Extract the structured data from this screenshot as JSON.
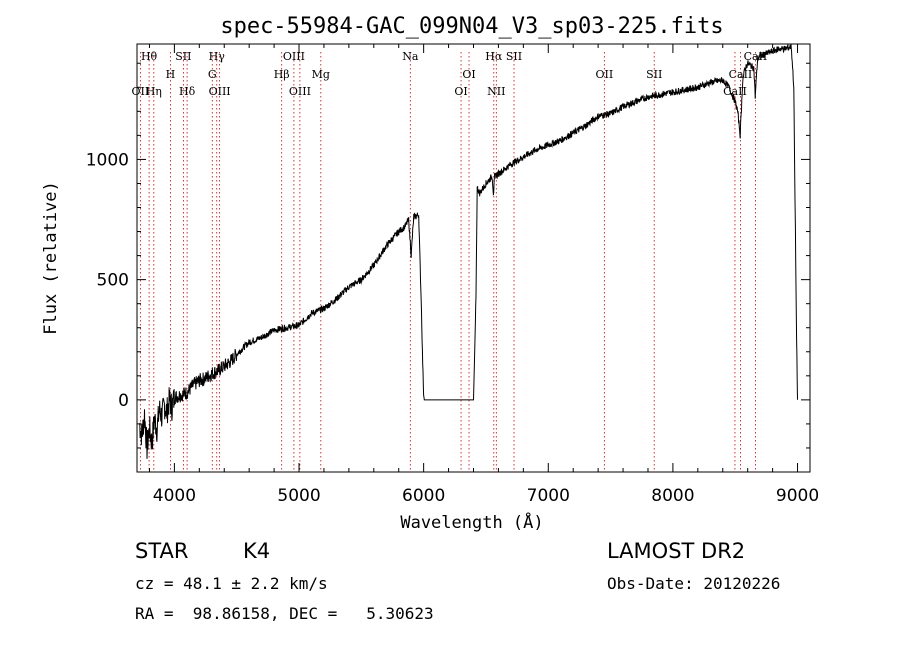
{
  "chart_data": {
    "type": "line",
    "title": "spec-55984-GAC_099N04_V3_sp03-225.fits",
    "xlabel": "Wavelength (Å)",
    "ylabel": "Flux (relative)",
    "xlim": [
      3700,
      9100
    ],
    "ylim": [
      -300,
      1480
    ],
    "xticks": [
      4000,
      5000,
      6000,
      7000,
      8000,
      9000
    ],
    "xtick_labels": [
      "4000",
      "5000",
      "6000",
      "7000",
      "8000",
      "9000"
    ],
    "yticks": [
      0,
      500,
      1000
    ],
    "ytick_labels": [
      "0",
      "500",
      "1000"
    ],
    "grid": false,
    "line_color": "#000000",
    "marker_color": "#cc0000",
    "spectral_lines": [
      {
        "label": "Hθ",
        "x": 3797,
        "row": 0
      },
      {
        "label": "OII",
        "x": 3727,
        "row": 2
      },
      {
        "label": "Hη",
        "x": 3835,
        "row": 2
      },
      {
        "label": "SII",
        "x": 4072,
        "row": 0
      },
      {
        "label": "H",
        "x": 3968,
        "row": 1
      },
      {
        "label": "Hδ",
        "x": 4102,
        "row": 2
      },
      {
        "label": "Hγ",
        "x": 4340,
        "row": 0
      },
      {
        "label": "G",
        "x": 4304,
        "row": 1
      },
      {
        "label": "OIII",
        "x": 4363,
        "row": 2
      },
      {
        "label": "OIII",
        "x": 4959,
        "row": 0
      },
      {
        "label": "Hβ",
        "x": 4861,
        "row": 1
      },
      {
        "label": "OIII",
        "x": 5007,
        "row": 2
      },
      {
        "label": "Mg",
        "x": 5175,
        "row": 1
      },
      {
        "label": "Na",
        "x": 5893,
        "row": 0
      },
      {
        "label": "OI",
        "x": 6364,
        "row": 1
      },
      {
        "label": "OI",
        "x": 6300,
        "row": 2
      },
      {
        "label": "Hα",
        "x": 6563,
        "row": 0
      },
      {
        "label": "SII",
        "x": 6725,
        "row": 0
      },
      {
        "label": "NII",
        "x": 6583,
        "row": 2
      },
      {
        "label": "OII",
        "x": 7450,
        "row": 1
      },
      {
        "label": "SII",
        "x": 7850,
        "row": 1
      },
      {
        "label": "CaII",
        "x": 8662,
        "row": 0
      },
      {
        "label": "CaII",
        "x": 8542,
        "row": 1
      },
      {
        "label": "CaII",
        "x": 8498,
        "row": 2
      }
    ],
    "series": [
      {
        "x": [
          3720,
          3740,
          3760,
          3780,
          3800,
          3820,
          3840,
          3860,
          3880,
          3900,
          3920,
          3940,
          3960,
          3980,
          4000,
          4050,
          4100,
          4150,
          4200,
          4250,
          4300,
          4350,
          4400,
          4450,
          4500,
          4600,
          4700,
          4800,
          4900,
          5000,
          5100,
          5200,
          5300,
          5400,
          5500,
          5600,
          5700,
          5800,
          5850,
          5880,
          5900,
          5920,
          5960,
          5980,
          5990,
          6000,
          6005,
          6010,
          6020,
          6100,
          6200,
          6300,
          6350,
          6380,
          6400,
          6410,
          6420,
          6430,
          6440,
          6450,
          6500,
          6550,
          6560,
          6570,
          6600,
          6700,
          6800,
          6900,
          7000,
          7100,
          7200,
          7300,
          7400,
          7500,
          7600,
          7700,
          7800,
          7900,
          8000,
          8100,
          8200,
          8300,
          8400,
          8450,
          8500,
          8520,
          8540,
          8560,
          8580,
          8600,
          8650,
          8660,
          8680,
          8700,
          8750,
          8800,
          8850,
          8900,
          8950,
          8970,
          8990,
          9000
        ],
        "y": [
          -100,
          -150,
          -60,
          -200,
          -120,
          -180,
          -80,
          -120,
          -40,
          -70,
          -20,
          -50,
          0,
          -30,
          10,
          20,
          30,
          60,
          80,
          90,
          110,
          120,
          140,
          160,
          190,
          240,
          260,
          290,
          300,
          310,
          360,
          380,
          420,
          470,
          500,
          560,
          640,
          700,
          720,
          750,
          600,
          760,
          770,
          420,
          200,
          20,
          0,
          0,
          0,
          0,
          0,
          0,
          0,
          0,
          0,
          200,
          440,
          880,
          870,
          860,
          900,
          930,
          860,
          930,
          940,
          980,
          1010,
          1040,
          1060,
          1080,
          1110,
          1140,
          1180,
          1190,
          1220,
          1240,
          1260,
          1270,
          1280,
          1290,
          1300,
          1320,
          1330,
          1300,
          1240,
          1200,
          1100,
          1330,
          1380,
          1400,
          1380,
          1260,
          1420,
          1430,
          1440,
          1450,
          1460,
          1460,
          1470,
          1300,
          350,
          0
        ]
      }
    ]
  },
  "info": {
    "class": "STAR",
    "subclass": "K4",
    "cz": "cz = 48.1 ± 2.2 km/s",
    "radec": "RA =  98.86158, DEC =   5.30623",
    "survey": "LAMOST DR2",
    "obsdate": "Obs-Date: 20120226"
  }
}
